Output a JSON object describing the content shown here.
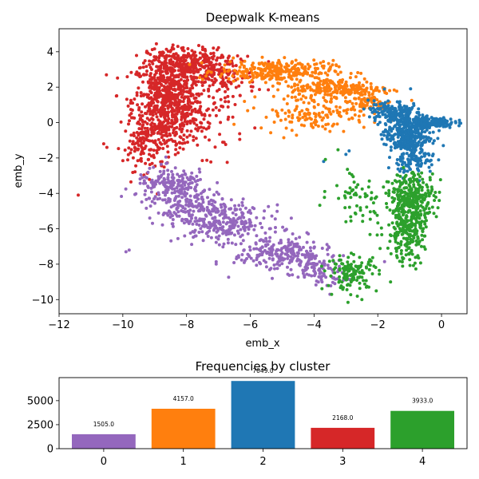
{
  "chart_data": [
    {
      "type": "scatter",
      "title": "Deepwalk K-means",
      "xlabel": "emb_x",
      "ylabel": "emb_y",
      "xlim": [
        -12,
        0.8
      ],
      "ylim": [
        -10.8,
        5.3
      ],
      "xticks": [
        -12,
        -10,
        -8,
        -6,
        -4,
        -2,
        0
      ],
      "yticks": [
        -10,
        -8,
        -6,
        -4,
        -2,
        0,
        2,
        4
      ],
      "colors": {
        "0": "#9467bd",
        "1": "#ff7f0e",
        "2": "#1f77b4",
        "3": "#d62728",
        "4": "#2ca02c"
      },
      "clusters": [
        {
          "cluster": "3",
          "color": "#d62728",
          "regions": [
            {
              "cx": -8.6,
              "cy": 1.2,
              "sx": 0.55,
              "sy": 1.3,
              "n": 700
            },
            {
              "cx": -8.0,
              "cy": 3.3,
              "sx": 0.6,
              "sy": 0.45,
              "n": 250
            },
            {
              "cx": -7.0,
              "cy": 2.6,
              "sx": 0.6,
              "sy": 0.7,
              "n": 150
            },
            {
              "cx": -9.3,
              "cy": -1.3,
              "sx": 0.35,
              "sy": 0.7,
              "n": 120
            },
            {
              "cx": -7.5,
              "cy": 0.0,
              "sx": 0.7,
              "sy": 0.9,
              "n": 80
            }
          ],
          "outliers": [
            [
              -10.6,
              -1.2
            ],
            [
              -10.5,
              -1.4
            ],
            [
              -11.4,
              -4.1
            ]
          ]
        },
        {
          "cluster": "1",
          "color": "#ff7f0e",
          "regions": [
            {
              "cx": -5.2,
              "cy": 2.9,
              "sx": 0.9,
              "sy": 0.3,
              "n": 300
            },
            {
              "cx": -3.2,
              "cy": 1.9,
              "sx": 0.8,
              "sy": 0.3,
              "n": 250
            },
            {
              "cx": -4.0,
              "cy": 0.5,
              "sx": 0.9,
              "sy": 0.45,
              "n": 140
            },
            {
              "cx": -2.2,
              "cy": 1.1,
              "sx": 0.3,
              "sy": 0.2,
              "n": 60
            }
          ],
          "outliers": [
            [
              -5.5,
              0.3
            ],
            [
              -4.0,
              0.0
            ],
            [
              -3.5,
              -0.5
            ]
          ]
        },
        {
          "cluster": "2",
          "color": "#1f77b4",
          "regions": [
            {
              "cx": -1.1,
              "cy": -0.6,
              "sx": 0.35,
              "sy": 0.7,
              "n": 400
            },
            {
              "cx": -0.3,
              "cy": 0.0,
              "sx": 0.35,
              "sy": 0.15,
              "n": 150
            },
            {
              "cx": -1.6,
              "cy": 0.6,
              "sx": 0.35,
              "sy": 0.3,
              "n": 120
            },
            {
              "cx": -0.8,
              "cy": -2.2,
              "sx": 0.3,
              "sy": 0.4,
              "n": 80
            }
          ],
          "outliers": [
            [
              -3.0,
              -1.8
            ],
            [
              -3.7,
              -2.2
            ],
            [
              -2.9,
              -1.6
            ]
          ]
        },
        {
          "cluster": "0",
          "color": "#9467bd",
          "regions": [
            {
              "cx": -8.4,
              "cy": -3.6,
              "sx": 0.6,
              "sy": 0.5,
              "n": 200
            },
            {
              "cx": -6.8,
              "cy": -5.7,
              "sx": 0.7,
              "sy": 0.5,
              "n": 230
            },
            {
              "cx": -5.0,
              "cy": -7.4,
              "sx": 0.75,
              "sy": 0.5,
              "n": 230
            },
            {
              "cx": -7.9,
              "cy": -4.9,
              "sx": 0.6,
              "sy": 0.45,
              "n": 140
            },
            {
              "cx": -3.8,
              "cy": -8.3,
              "sx": 0.4,
              "sy": 0.4,
              "n": 90
            }
          ],
          "outliers": [
            [
              -9.9,
              -7.3
            ],
            [
              -9.8,
              -7.2
            ],
            [
              -3.5,
              -9.7
            ]
          ]
        },
        {
          "cluster": "4",
          "color": "#2ca02c",
          "regions": [
            {
              "cx": -0.9,
              "cy": -4.2,
              "sx": 0.35,
              "sy": 0.7,
              "n": 280
            },
            {
              "cx": -1.1,
              "cy": -6.2,
              "sx": 0.28,
              "sy": 0.8,
              "n": 230
            },
            {
              "cx": -2.8,
              "cy": -8.5,
              "sx": 0.4,
              "sy": 0.5,
              "n": 130
            },
            {
              "cx": -1.8,
              "cy": -5.0,
              "sx": 0.6,
              "sy": 1.2,
              "n": 40
            },
            {
              "cx": -2.8,
              "cy": -3.8,
              "sx": 0.4,
              "sy": 0.8,
              "n": 40
            }
          ],
          "outliers": [
            [
              -2.5,
              -10.0
            ],
            [
              -1.6,
              -9.0
            ],
            [
              -3.0,
              -5.6
            ]
          ]
        }
      ]
    },
    {
      "type": "bar",
      "title": "Frequencies by cluster",
      "categories": [
        "0",
        "1",
        "2",
        "3",
        "4"
      ],
      "values": [
        1505.0,
        4157.0,
        7049.0,
        2168.0,
        3933.0
      ],
      "value_labels": [
        "1505.0",
        "4157.0",
        "7049.0",
        "2168.0",
        "3933.0"
      ],
      "colors": [
        "#9467bd",
        "#ff7f0e",
        "#1f77b4",
        "#d62728",
        "#2ca02c"
      ],
      "ylim": [
        0,
        7400
      ],
      "yticks": [
        0,
        2500,
        5000
      ],
      "xlabel": "",
      "ylabel": ""
    }
  ]
}
